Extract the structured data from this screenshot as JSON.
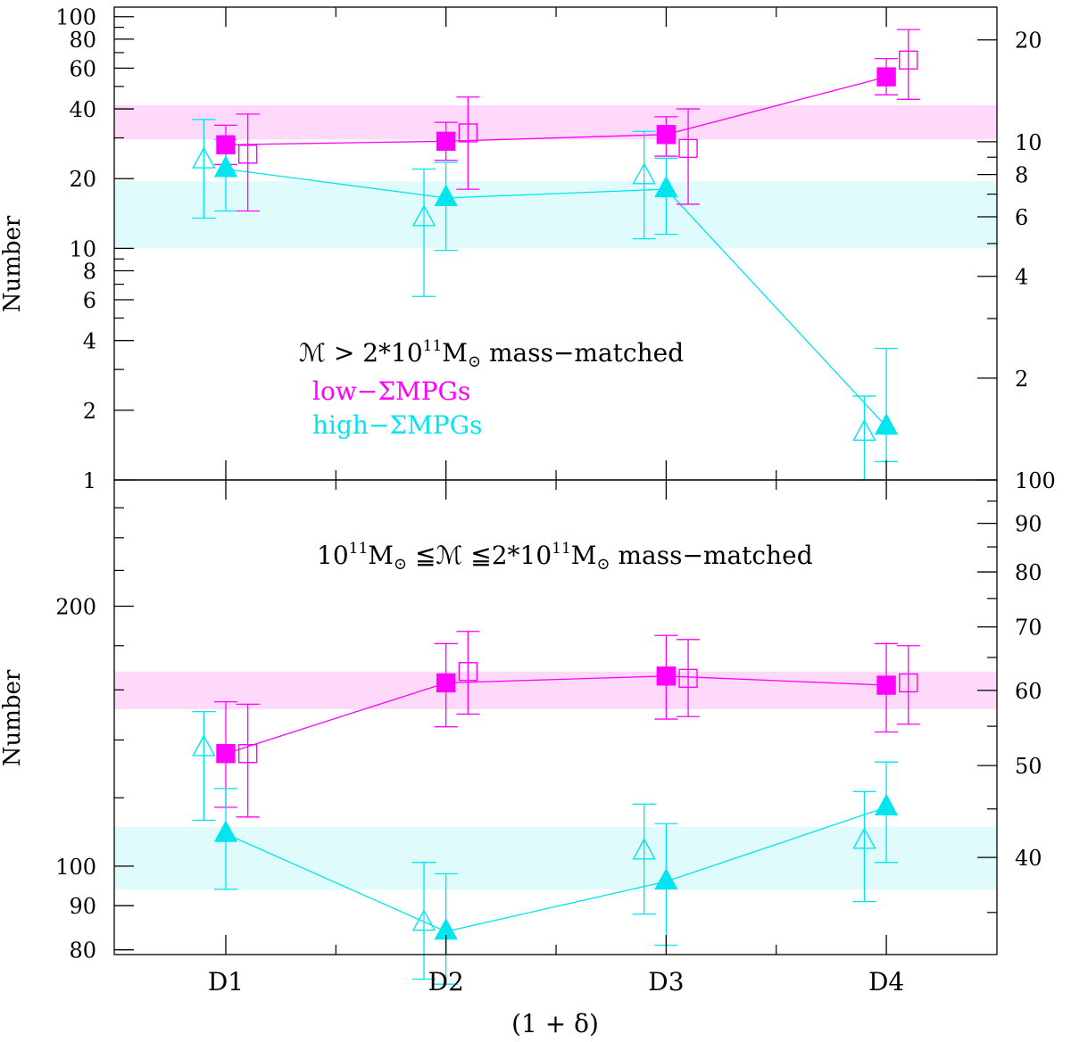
{
  "chart_data": [
    {
      "type": "scatter",
      "panel": "top",
      "scale": "log",
      "ylabel": "Number",
      "ylim": [
        1,
        110
      ],
      "yticks_left": [
        1,
        2,
        4,
        6,
        8,
        10,
        20,
        40,
        60,
        80,
        100
      ],
      "yticks_left_labels": [
        "1",
        "2",
        "4",
        "6",
        "8",
        "10",
        "20",
        "40",
        "60",
        "80",
        "100"
      ],
      "right_axis_ylim": [
        1,
        25
      ],
      "yticks_right": [
        2,
        4,
        6,
        8,
        10,
        20
      ],
      "yticks_right_labels": [
        "2",
        "4",
        "6",
        "8",
        "10",
        "20"
      ],
      "categories": [
        "D1",
        "D2",
        "D3",
        "D4"
      ],
      "annotation": {
        "prefix": "ℳ > 2*10",
        "exp1": "11",
        "suffix": "M",
        "sub": "⊙",
        "tail": " mass−matched"
      },
      "legend": [
        {
          "label": "low−ΣMPGs",
          "color": "#ff00ff"
        },
        {
          "label": "high−ΣMPGs",
          "color": "#00e5ee"
        }
      ],
      "bands": [
        {
          "series": "low−ΣMPGs",
          "range": [
            29.5,
            41.5
          ],
          "color": "#ffd9f9"
        },
        {
          "series": "high−ΣMPGs",
          "range": [
            10,
            19.5
          ],
          "color": "#e0fbfb"
        }
      ],
      "series": [
        {
          "name": "low−ΣMPGs filled",
          "color": "#ff00ff",
          "marker": "square-filled",
          "connected": true,
          "axis": "left",
          "x": [
            1,
            2,
            3,
            4
          ],
          "values": [
            28,
            29,
            31,
            55
          ],
          "err_low": [
            23,
            24,
            25,
            46
          ],
          "err_high": [
            34,
            35,
            37,
            66
          ]
        },
        {
          "name": "low−ΣMPGs open",
          "color": "#ff00ff",
          "marker": "square-open",
          "connected": false,
          "axis": "left",
          "x": [
            1.1,
            2.1,
            3.1,
            4.1
          ],
          "values": [
            25.5,
            31.5,
            27,
            65
          ],
          "err_low": [
            14.5,
            18,
            15.5,
            44
          ],
          "err_high": [
            38,
            45,
            40,
            88
          ]
        },
        {
          "name": "high−ΣMPGs filled",
          "color": "#00e5ee",
          "marker": "triangle-filled",
          "connected": true,
          "axis": "left",
          "x": [
            1,
            2,
            3,
            4
          ],
          "values": [
            22,
            16.5,
            18,
            1.7
          ],
          "err_low": [
            14.5,
            9.8,
            11.5,
            1.2
          ],
          "err_high": [
            29.5,
            23.5,
            24.5,
            3.7
          ]
        },
        {
          "name": "high−ΣMPGs open",
          "color": "#00e5ee",
          "marker": "triangle-open",
          "connected": false,
          "axis": "left",
          "x": [
            0.9,
            1.9,
            2.9,
            3.9
          ],
          "values": [
            24,
            13.5,
            20.5,
            1.6
          ],
          "err_low": [
            13.5,
            6.2,
            11,
            1.0
          ],
          "err_high": [
            36,
            22,
            32,
            2.3
          ]
        }
      ]
    },
    {
      "type": "scatter",
      "panel": "bottom",
      "scale": "log",
      "ylabel": "Number",
      "ylim": [
        79,
        280
      ],
      "yticks_left": [
        80,
        90,
        100,
        200
      ],
      "yticks_left_labels": [
        "80",
        "90",
        "100",
        "200"
      ],
      "right_axis_ylim": [
        31.6,
        100
      ],
      "yticks_right": [
        40,
        50,
        60,
        70,
        80,
        90,
        100
      ],
      "yticks_right_labels": [
        "40",
        "50",
        "60",
        "70",
        "80",
        "90",
        "100"
      ],
      "categories": [
        "D1",
        "D2",
        "D3",
        "D4"
      ],
      "xlabel": "(1 + δ)",
      "annotation": {
        "prefix": "10",
        "exp1": "11",
        "mid": "M",
        "sub1": "⊙",
        "mid2": " ≦ℳ ≦2*10",
        "exp2": "11",
        "suffix": "M",
        "sub2": "⊙",
        "tail": " mass−matched"
      },
      "bands": [
        {
          "series": "low−ΣMPGs",
          "range": [
            152,
            168
          ],
          "color": "#ffd9f9"
        },
        {
          "series": "high−ΣMPGs",
          "range": [
            94,
            111
          ],
          "color": "#e0fbfb"
        }
      ],
      "series": [
        {
          "name": "low−ΣMPGs filled",
          "color": "#ff00ff",
          "marker": "square-filled",
          "connected": true,
          "axis": "left",
          "x": [
            1,
            2,
            3,
            4
          ],
          "values": [
            135,
            163,
            166,
            162
          ],
          "err_low": [
            117,
            145,
            148,
            143
          ],
          "err_high": [
            155,
            181,
            185,
            181
          ]
        },
        {
          "name": "low−ΣMPGs open",
          "color": "#ff00ff",
          "marker": "square-open",
          "connected": false,
          "axis": "left",
          "x": [
            1.1,
            2.1,
            3.1,
            4.1
          ],
          "values": [
            135,
            168,
            165,
            163
          ],
          "err_low": [
            114,
            150,
            149,
            146
          ],
          "err_high": [
            154,
            187,
            183,
            180
          ]
        },
        {
          "name": "high−ΣMPGs filled",
          "color": "#00e5ee",
          "marker": "triangle-filled",
          "connected": true,
          "axis": "left",
          "x": [
            1,
            2,
            3,
            4
          ],
          "values": [
            109,
            84,
            96,
            117
          ],
          "err_low": [
            94,
            73,
            81,
            101
          ],
          "err_high": [
            123,
            98,
            112,
            132
          ]
        },
        {
          "name": "high−ΣMPGs open",
          "color": "#00e5ee",
          "marker": "triangle-open",
          "connected": false,
          "axis": "left",
          "x": [
            0.9,
            1.9,
            2.9,
            3.9
          ],
          "values": [
            137,
            86,
            104,
            107
          ],
          "err_low": [
            113,
            74,
            88,
            91
          ],
          "err_high": [
            151,
            101,
            118,
            122
          ]
        }
      ]
    }
  ]
}
